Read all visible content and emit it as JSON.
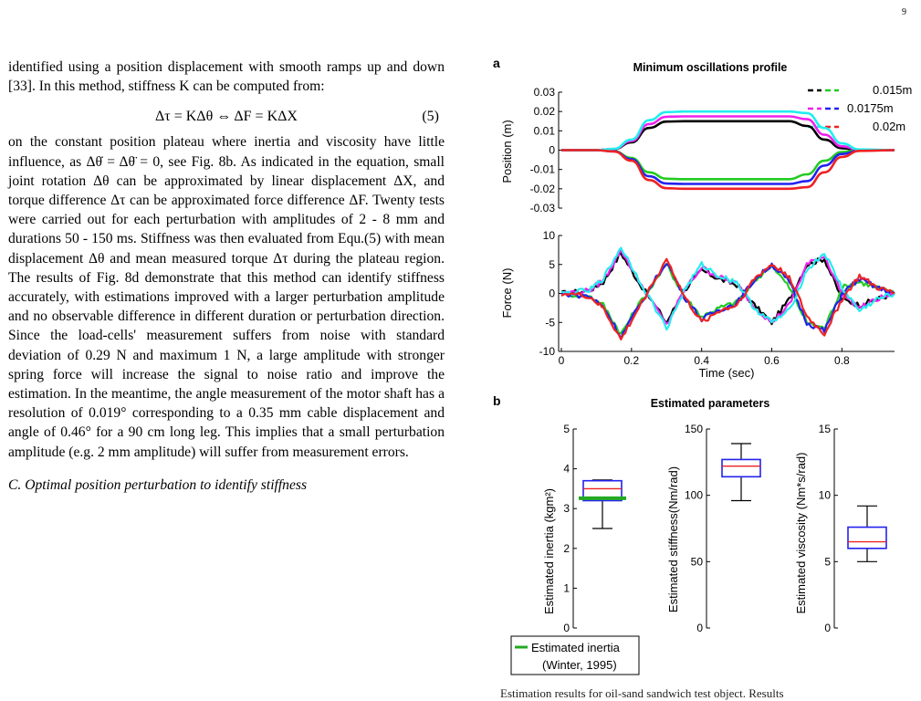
{
  "page": {
    "number": "9"
  },
  "text": {
    "para1": "identified using a position displacement with smooth ramps up and down [33]. In this method, stiffness K can be computed from:",
    "equation": "Δτ = KΔθ ⇔ ΔF = KΔX",
    "equation_number": "(5)",
    "para2": "on the constant position plateau where inertia and viscosity have little influence, as Δθ̇ = Δθ̈ = 0, see Fig. 8b. As indicated in the equation, small joint rotation Δθ can be approximated by linear displacement ΔX, and torque difference Δτ can be approximated force difference ΔF. Twenty tests were carried out for each perturbation with amplitudes of 2 - 8 mm and durations 50 - 150 ms. Stiffness was then evaluated from Equ.(5) with mean displacement Δθ and mean measured torque Δτ during the plateau region. The results of Fig. 8d demonstrate that this method can identify stiffness accurately, with estimations improved with a larger perturbation amplitude and no observable difference in different duration or perturbation direction. Since the load-cells' measurement suffers from noise with standard deviation of 0.29 N and maximum 1 N, a large amplitude with stronger spring force will increase the signal to noise ratio and improve the estimation. In the meantime, the angle measurement of the motor shaft has a resolution of 0.019° corresponding to a 0.35 mm cable displacement and angle of 0.46° for a 90 cm long leg. This implies that a small perturbation amplitude (e.g. 2 mm amplitude) will suffer from measurement errors.",
    "section_heading": "C. Optimal position perturbation to identify stiffness",
    "caption_fragment": "Estimation results for oil-sand sandwich test object. Results"
  },
  "figure": {
    "panel_a": {
      "label": "a",
      "title": "Minimum oscillations profile",
      "position_ylabel": "Position (m)",
      "force_ylabel": "Force (N)",
      "xlabel": "Time (sec)",
      "position_ticks": [
        "0.03",
        "0.02",
        "0.01",
        "0",
        "-0.01",
        "-0.02",
        "-0.03"
      ],
      "force_ticks": [
        "10",
        "5",
        "0",
        "-5",
        "-10"
      ],
      "time_ticks": [
        "0",
        "0.2",
        "0.4",
        "0.6",
        "0.8"
      ],
      "legend": [
        "0.015m",
        "0.0175m",
        "0.02m"
      ],
      "colors": {
        "0.015m": [
          "#000000",
          "#22cc22"
        ],
        "0.0175m": [
          "#ee22ee",
          "#2222ee"
        ],
        "0.02m": [
          "#22eeee",
          "#ee2222"
        ]
      }
    },
    "panel_b": {
      "label": "b",
      "title": "Estimated parameters",
      "inertia_ylabel": "Estimated inertia (kgm²)",
      "stiffness_ylabel": "Estimated stiffness(Nm/rad)",
      "viscosity_ylabel": "Estimated viscosity (Nm*s/rad)",
      "inertia_ticks": [
        "5",
        "4",
        "3",
        "2",
        "1",
        "0"
      ],
      "stiffness_ticks": [
        "150",
        "100",
        "50",
        "0"
      ],
      "viscosity_ticks": [
        "15",
        "10",
        "5",
        "0"
      ],
      "legend_line1": "Estimated inertia",
      "legend_line2": "(Winter, 1995)"
    }
  },
  "chart_data": [
    {
      "type": "line",
      "title": "Minimum oscillations profile",
      "xlabel": "",
      "ylabel": "Position (m)",
      "xlim": [
        0,
        0.95
      ],
      "ylim": [
        -0.03,
        0.03
      ],
      "x": [
        0,
        0.1,
        0.15,
        0.2,
        0.25,
        0.3,
        0.35,
        0.4,
        0.6,
        0.65,
        0.7,
        0.75,
        0.8,
        0.85,
        0.95
      ],
      "series": [
        {
          "name": "0.015m",
          "color": "#000000",
          "values": [
            0,
            0,
            0.0005,
            0.004,
            0.0115,
            0.0148,
            0.015,
            0.015,
            0.015,
            0.015,
            0.0125,
            0.0055,
            0.001,
            0,
            0
          ]
        },
        {
          "name": "0.015m",
          "color": "#22cc22",
          "values": [
            0,
            0,
            -0.0005,
            -0.004,
            -0.0115,
            -0.0148,
            -0.015,
            -0.015,
            -0.015,
            -0.015,
            -0.0125,
            -0.0055,
            -0.001,
            0,
            0
          ]
        },
        {
          "name": "0.0175m",
          "color": "#ee22ee",
          "values": [
            0,
            0,
            0.0006,
            0.0047,
            0.0135,
            0.0173,
            0.0175,
            0.0175,
            0.0175,
            0.0175,
            0.016,
            0.008,
            0.002,
            0.0002,
            0
          ]
        },
        {
          "name": "0.0175m",
          "color": "#2222ee",
          "values": [
            0,
            0,
            -0.0006,
            -0.0047,
            -0.0135,
            -0.0173,
            -0.0175,
            -0.0175,
            -0.0175,
            -0.0175,
            -0.016,
            -0.008,
            -0.002,
            -0.0002,
            0
          ]
        },
        {
          "name": "0.02m",
          "color": "#22eeee",
          "values": [
            0,
            0,
            0.0007,
            0.0055,
            0.0155,
            0.0197,
            0.02,
            0.02,
            0.02,
            0.02,
            0.0192,
            0.0115,
            0.0035,
            0.0004,
            0
          ]
        },
        {
          "name": "0.02m",
          "color": "#ee2222",
          "values": [
            0,
            0,
            -0.0007,
            -0.0055,
            -0.0155,
            -0.0197,
            -0.02,
            -0.02,
            -0.02,
            -0.02,
            -0.0192,
            -0.0115,
            -0.0035,
            -0.0004,
            0
          ]
        }
      ]
    },
    {
      "type": "line",
      "title": "",
      "xlabel": "Time (sec)",
      "ylabel": "Force (N)",
      "xlim": [
        0,
        0.95
      ],
      "ylim": [
        -10,
        10
      ],
      "x": [
        0,
        0.08,
        0.12,
        0.17,
        0.22,
        0.3,
        0.35,
        0.4,
        0.45,
        0.5,
        0.55,
        0.6,
        0.65,
        0.7,
        0.75,
        0.8,
        0.85,
        0.9,
        0.95
      ],
      "series": [
        {
          "name": "0.015m",
          "color": "#000000",
          "values": [
            0,
            0.5,
            2,
            7,
            2,
            -5,
            0.5,
            4,
            2.5,
            1.5,
            -2,
            -5,
            -1,
            5,
            6,
            -1,
            -2,
            -1,
            0
          ]
        },
        {
          "name": "0.015m",
          "color": "#22cc22",
          "values": [
            0,
            -0.5,
            -2,
            -7,
            -2,
            5,
            -0.5,
            -4,
            -2.5,
            -1.5,
            2,
            5,
            1,
            -5,
            -6,
            1,
            2,
            1,
            0
          ]
        },
        {
          "name": "0.0175m",
          "color": "#ee22ee",
          "values": [
            0,
            0.5,
            2.3,
            7.5,
            2.3,
            -5.5,
            0.5,
            4.5,
            2.8,
            1.7,
            -2.3,
            -5,
            -2,
            5,
            6.5,
            0,
            -2.5,
            -1,
            0
          ]
        },
        {
          "name": "0.0175m",
          "color": "#2222ee",
          "values": [
            0,
            -0.5,
            -2.3,
            -7.5,
            -2.3,
            5.5,
            -0.5,
            -4.5,
            -2.8,
            -1.7,
            2.3,
            5,
            2,
            -5,
            -6.5,
            0,
            2.5,
            1,
            0
          ]
        },
        {
          "name": "0.02m",
          "color": "#22eeee",
          "values": [
            0,
            0.5,
            2.6,
            8,
            2.6,
            -6,
            0.5,
            5,
            3,
            2,
            -2.5,
            -5,
            -3,
            4,
            7,
            1,
            -3,
            -1,
            0
          ]
        },
        {
          "name": "0.02m",
          "color": "#ee2222",
          "values": [
            0,
            -0.5,
            -2.6,
            -8,
            -2.6,
            6,
            -0.5,
            -5,
            -3,
            -2,
            2.5,
            5,
            3,
            -4,
            -7,
            -1,
            3,
            1,
            0
          ]
        }
      ]
    },
    {
      "type": "box",
      "title": "Estimated parameters",
      "ylabel": "Estimated inertia (kgm²)",
      "ylim": [
        0,
        5
      ],
      "box": {
        "min": 2.5,
        "q1": 3.2,
        "median": 3.5,
        "q3": 3.7,
        "max": 3.72
      },
      "reference": {
        "name": "Estimated inertia (Winter, 1995)",
        "value": 3.26,
        "color": "#22aa22"
      }
    },
    {
      "type": "box",
      "ylabel": "Estimated stiffness(Nm/rad)",
      "ylim": [
        0,
        150
      ],
      "box": {
        "min": 96,
        "q1": 114,
        "median": 122,
        "q3": 127,
        "max": 139
      }
    },
    {
      "type": "box",
      "ylabel": "Estimated viscosity (Nm*s/rad)",
      "ylim": [
        0,
        15
      ],
      "box": {
        "min": 5,
        "q1": 6,
        "median": 6.5,
        "q3": 7.6,
        "max": 9.2
      }
    }
  ]
}
